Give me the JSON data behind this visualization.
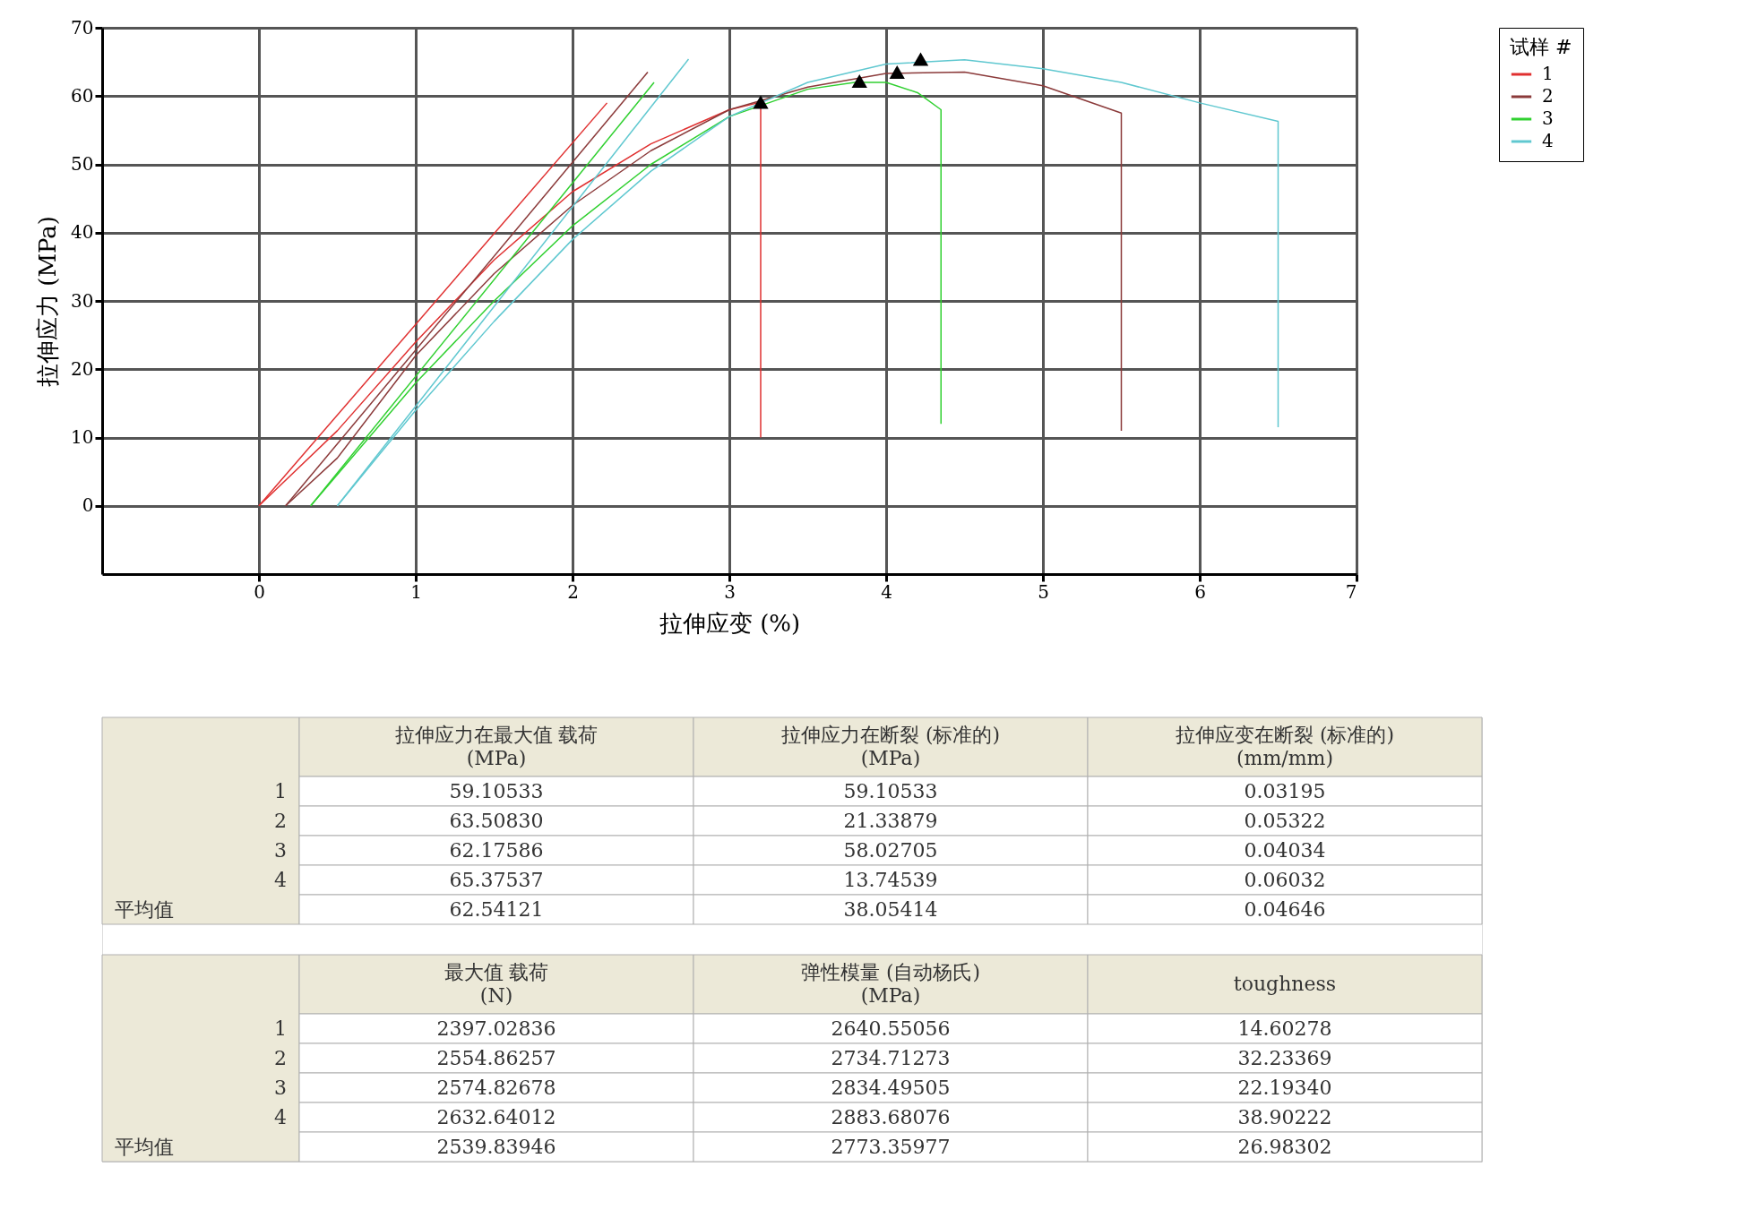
{
  "chart_data": {
    "type": "line",
    "xlabel": "拉伸应变 (%)",
    "ylabel": "拉伸应力 (MPa)",
    "legend_title": "试样 #",
    "legend": "right",
    "grid": true,
    "xlim": [
      -1,
      7
    ],
    "xticks": [
      0,
      1,
      2,
      3,
      4,
      5,
      6,
      7
    ],
    "ylim": [
      -10,
      70
    ],
    "yticks": [
      0,
      10,
      20,
      30,
      40,
      50,
      60,
      70
    ],
    "series": [
      {
        "name": "1",
        "color": "#e03030",
        "x": [
          0,
          0.5,
          1,
          1.5,
          2,
          2.5,
          3,
          3.2,
          3.2
        ],
        "values": [
          0,
          11,
          24,
          36,
          46,
          53,
          58,
          59.1,
          10
        ]
      },
      {
        "name": "2",
        "color": "#8b3a3a",
        "x": [
          0.17,
          0.5,
          1,
          1.5,
          2,
          2.5,
          3,
          3.5,
          4,
          4.5,
          5,
          5.5,
          5.5
        ],
        "values": [
          0,
          7,
          22,
          34,
          44,
          52,
          58,
          61.3,
          63.3,
          63.5,
          61.5,
          57.5,
          11
        ]
      },
      {
        "name": "3",
        "color": "#30d030",
        "x": [
          0.33,
          1,
          1.5,
          2,
          2.5,
          3,
          3.5,
          3.8,
          4,
          4.2,
          4.35,
          4.35
        ],
        "values": [
          0,
          18,
          30,
          41,
          50,
          57,
          61,
          62,
          62,
          60.5,
          58,
          12
        ]
      },
      {
        "name": "4",
        "color": "#60c8d0",
        "x": [
          0.5,
          1,
          1.5,
          2,
          2.5,
          3,
          3.5,
          4,
          4.5,
          5,
          5.5,
          6,
          6.5,
          6.5
        ],
        "values": [
          0,
          14,
          27,
          39,
          49,
          57,
          62,
          64.7,
          65.3,
          64,
          62,
          59,
          56.3,
          11.5
        ]
      },
      {
        "type": "line",
        "color": "#e03030",
        "x": [
          0,
          2.22
        ],
        "values": [
          0,
          59
        ]
      },
      {
        "type": "line",
        "color": "#8b3a3a",
        "x": [
          0.17,
          2.48
        ],
        "values": [
          0,
          63.5
        ]
      },
      {
        "type": "line",
        "color": "#30d030",
        "x": [
          0.33,
          2.52
        ],
        "values": [
          0,
          62
        ]
      },
      {
        "type": "line",
        "color": "#60c8d0",
        "x": [
          0.5,
          2.74
        ],
        "values": [
          0,
          65.4
        ]
      },
      {
        "type": "scatter",
        "marker": "triangle",
        "color": "#000000",
        "x": [
          3.2,
          3.83,
          4.07,
          4.22
        ],
        "values": [
          59.1,
          62.2,
          63.5,
          65.4
        ]
      }
    ],
    "annotations": [
      "拉伸应力在最大值 载荷\n(MPa)",
      "拉伸应力在断裂 (标准的)\n(MPa)",
      "拉伸应变在断裂 (标准的)\n(mm/mm)",
      "1",
      "59.10533",
      "59.10533",
      "0.03195",
      "2",
      "63.50830",
      "21.33879",
      "0.05322",
      "3",
      "62.17586",
      "58.02705",
      "0.04034",
      "4",
      "65.37537",
      "13.74539",
      "0.06032",
      "平均值",
      "62.54121",
      "38.05414",
      "0.04646",
      "最大值 载荷\n(N)",
      "弹性模量 (自动杨氏)\n(MPa)",
      "toughness",
      "1",
      "2397.02836",
      "2640.55056",
      "14.60278",
      "2",
      "2554.86257",
      "2734.71273",
      "32.23369",
      "3",
      "2574.82678",
      "2834.49505",
      "22.19340",
      "4",
      "2632.64012",
      "2883.68076",
      "38.90222",
      "平均值",
      "2539.83946",
      "2773.35977",
      "26.98302"
    ]
  }
}
